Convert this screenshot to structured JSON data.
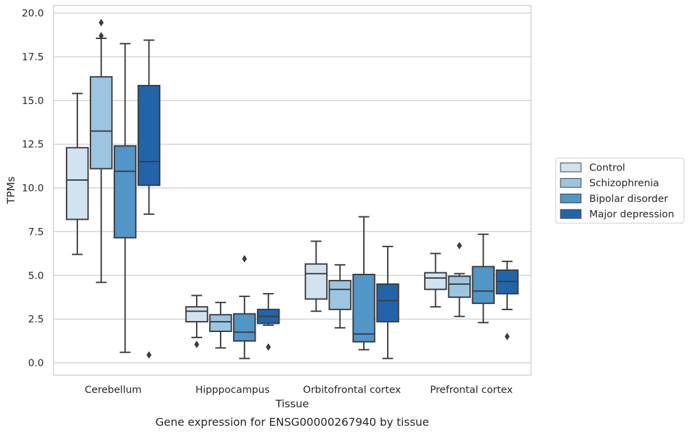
{
  "chart_data": {
    "type": "box",
    "title": "",
    "caption": "Gene expression for ENSG00000267940 by tissue",
    "xlabel": "Tissue",
    "ylabel": "TPMs",
    "ylim": [
      -0.7,
      20.4
    ],
    "yticks": [
      "0.0",
      "2.5",
      "5.0",
      "7.5",
      "10.0",
      "12.5",
      "15.0",
      "17.5",
      "20.0"
    ],
    "grid": "horizontal",
    "legend_position": "right",
    "categories": [
      "Cerebellum",
      "Hipppocampus",
      "Orbitofrontal cortex",
      "Prefrontal cortex"
    ],
    "series": [
      {
        "name": "Control",
        "color": "#d1e2f1",
        "boxes": [
          {
            "whislo": 6.2,
            "q1": 8.2,
            "med": 10.45,
            "q3": 12.3,
            "whishi": 15.4,
            "fliers": []
          },
          {
            "whislo": 1.45,
            "q1": 2.35,
            "med": 2.95,
            "q3": 3.2,
            "whishi": 3.85,
            "fliers": [
              1.05
            ]
          },
          {
            "whislo": 2.95,
            "q1": 3.65,
            "med": 5.1,
            "q3": 5.65,
            "whishi": 6.95,
            "fliers": []
          },
          {
            "whislo": 3.2,
            "q1": 4.2,
            "med": 4.85,
            "q3": 5.15,
            "whishi": 6.25,
            "fliers": []
          }
        ]
      },
      {
        "name": "Schizophrenia",
        "color": "#9dc4e0",
        "boxes": [
          {
            "whislo": 4.6,
            "q1": 11.1,
            "med": 13.25,
            "q3": 16.35,
            "whishi": 18.55,
            "fliers": [
              18.7,
              19.45
            ]
          },
          {
            "whislo": 0.85,
            "q1": 1.8,
            "med": 2.35,
            "q3": 2.75,
            "whishi": 3.45,
            "fliers": []
          },
          {
            "whislo": 2.0,
            "q1": 3.05,
            "med": 4.2,
            "q3": 4.7,
            "whishi": 5.6,
            "fliers": []
          },
          {
            "whislo": 2.65,
            "q1": 3.75,
            "med": 4.5,
            "q3": 4.95,
            "whishi": 5.1,
            "fliers": [
              6.7
            ]
          }
        ]
      },
      {
        "name": "Bipolar disorder",
        "color": "#5295c7",
        "boxes": [
          {
            "whislo": 0.6,
            "q1": 7.15,
            "med": 10.95,
            "q3": 12.4,
            "whishi": 18.25,
            "fliers": []
          },
          {
            "whislo": 0.25,
            "q1": 1.25,
            "med": 1.75,
            "q3": 2.8,
            "whishi": 3.8,
            "fliers": [
              5.95
            ]
          },
          {
            "whislo": 0.75,
            "q1": 1.2,
            "med": 1.65,
            "q3": 5.05,
            "whishi": 8.35,
            "fliers": []
          },
          {
            "whislo": 2.3,
            "q1": 3.4,
            "med": 4.1,
            "q3": 5.5,
            "whishi": 7.35,
            "fliers": []
          }
        ]
      },
      {
        "name": "Major depression",
        "color": "#2264aa",
        "boxes": [
          {
            "whislo": 8.5,
            "q1": 10.15,
            "med": 11.5,
            "q3": 15.85,
            "whishi": 18.45,
            "fliers": [
              0.45
            ]
          },
          {
            "whislo": 2.15,
            "q1": 2.25,
            "med": 2.65,
            "q3": 3.05,
            "whishi": 3.95,
            "fliers": [
              0.9
            ]
          },
          {
            "whislo": 0.25,
            "q1": 2.35,
            "med": 3.55,
            "q3": 4.5,
            "whishi": 6.65,
            "fliers": []
          },
          {
            "whislo": 3.05,
            "q1": 3.95,
            "med": 4.65,
            "q3": 5.3,
            "whishi": 5.8,
            "fliers": [
              1.5
            ]
          }
        ]
      }
    ]
  }
}
